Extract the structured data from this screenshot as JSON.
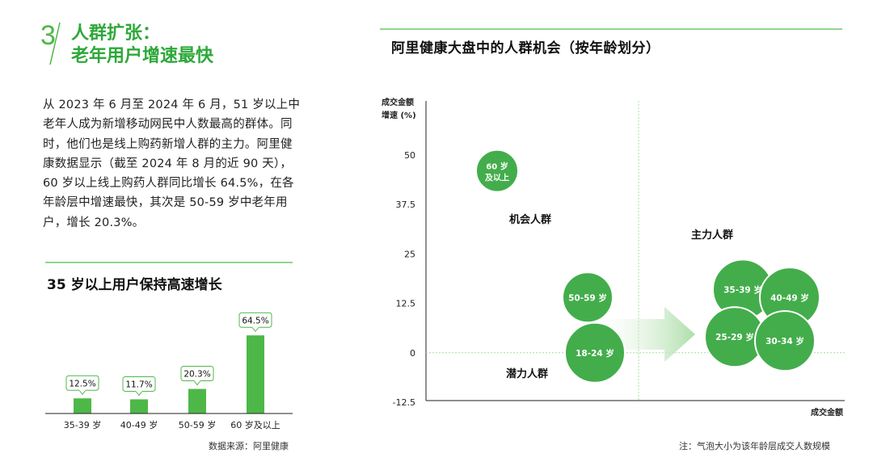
{
  "section": {
    "number": "3",
    "title_line1": "人群扩张：",
    "title_line2": "老年用户增速最快"
  },
  "intro_text": "从 2023 年 6 月至 2024 年 6 月，51 岁以上中老年人成为新增移动网民中人数最高的群体。同时，他们也是线上购药新增人群的主力。阿里健康数据显示（截至 2024 年 8 月的近 90 天），60 岁以上线上购药人群同比增长 64.5%，在各年龄层中增速最快，其次是 50-59 岁中老年用户，增长 20.3%。",
  "left_chart_title": "35 岁以上用户保持高速增长",
  "source": "数据来源：阿里健康",
  "right_chart_title": "阿里健康大盘中的人群机会（按年龄划分）",
  "note": "注：气泡大小为该年龄层成交人数规模",
  "colors": {
    "accent": "#4db848",
    "accent_dark": "#2ea83a",
    "bubble": "#43ad4b",
    "guide": "#a9dca4"
  },
  "chart_data": [
    {
      "type": "bar",
      "title": "35 岁以上用户保持高速增长",
      "categories": [
        "35-39 岁",
        "40-49 岁",
        "50-59 岁",
        "60 岁及以上"
      ],
      "values": [
        12.5,
        11.7,
        20.3,
        64.5
      ],
      "value_labels": [
        "12.5%",
        "11.7%",
        "20.3%",
        "64.5%"
      ],
      "unit": "%",
      "ylim": [
        0,
        70
      ],
      "grid": false
    },
    {
      "type": "scatter",
      "title": "阿里健康大盘中的人群机会（按年龄划分）",
      "ylabel_line1": "成交金额",
      "ylabel_line2": "增速 (%)",
      "xlabel": "成交金额",
      "yticks": [
        50,
        37.5,
        25,
        12.5,
        0,
        -12.5
      ],
      "ylim": [
        -12.5,
        50
      ],
      "grid": false,
      "quadrant_labels": {
        "top_left": "机会人群",
        "top_right": "主力人群",
        "bottom_left": "潜力人群"
      },
      "bubbles": [
        {
          "label_line1": "60 岁",
          "label_line2": "及以上",
          "y": 46
        },
        {
          "label_line1": "50-59 岁",
          "label_line2": "",
          "y": 14
        },
        {
          "label_line1": "18-24 岁",
          "label_line2": "",
          "y": 0
        },
        {
          "label_line1": "35-39 岁",
          "label_line2": "",
          "y": 16
        },
        {
          "label_line1": "40-49 岁",
          "label_line2": "",
          "y": 14
        },
        {
          "label_line1": "25-29 岁",
          "label_line2": "",
          "y": 4
        },
        {
          "label_line1": "30-34 岁",
          "label_line2": "",
          "y": 3
        }
      ]
    }
  ]
}
